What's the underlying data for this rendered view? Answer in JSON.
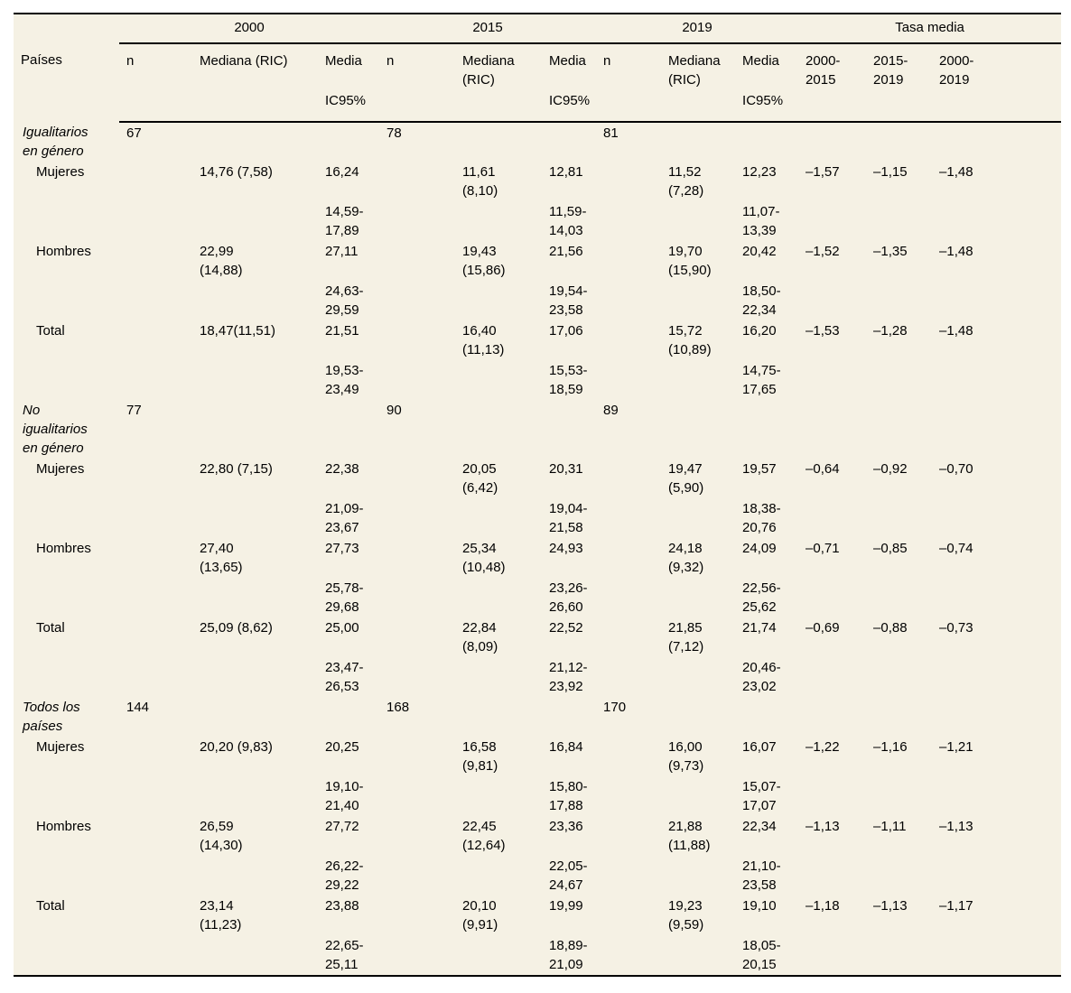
{
  "colors": {
    "page_bg": "#ffffff",
    "table_bg": "#f5f1e4",
    "rule": "#000000",
    "text": "#000000"
  },
  "header": {
    "row_label": "Países",
    "year_groups": [
      "2000",
      "2015",
      "2019"
    ],
    "rate_group": "Tasa media",
    "col_n": "n",
    "col_mediana_wide": "Mediana (RIC)",
    "col_mediana": "Mediana\n(RIC)",
    "col_media": "Media",
    "col_ic": "IC95%",
    "rate_cols": [
      "2000-\n2015",
      "2015-\n2019",
      "2000-\n2019"
    ]
  },
  "body": {
    "groups": [
      {
        "label": "Igualitarios\nen género",
        "n": [
          "67",
          "78",
          "81"
        ],
        "rows": [
          {
            "label": "Mujeres",
            "mediana": [
              "14,76 (7,58)",
              "11,61\n(8,10)",
              "11,52\n(7,28)"
            ],
            "media": [
              "16,24",
              "12,81",
              "12,23"
            ],
            "ic": [
              "14,59-\n17,89",
              "11,59-\n14,03",
              "11,07-\n13,39"
            ],
            "tasas": [
              "–1,57",
              "–1,15",
              "–1,48"
            ]
          },
          {
            "label": "Hombres",
            "mediana": [
              "22,99\n(14,88)",
              "19,43\n(15,86)",
              "19,70\n(15,90)"
            ],
            "media": [
              "27,11",
              "21,56",
              "20,42"
            ],
            "ic": [
              "24,63-\n29,59",
              "19,54-\n23,58",
              "18,50-\n22,34"
            ],
            "tasas": [
              "–1,52",
              "–1,35",
              "–1,48"
            ]
          },
          {
            "label": "Total",
            "mediana": [
              "18,47(11,51)",
              "16,40\n(11,13)",
              "15,72\n(10,89)"
            ],
            "media": [
              "21,51",
              "17,06",
              "16,20"
            ],
            "ic": [
              "19,53-\n23,49",
              "15,53-\n18,59",
              "14,75-\n17,65"
            ],
            "tasas": [
              "–1,53",
              "–1,28",
              "–1,48"
            ]
          }
        ]
      },
      {
        "label": "No\nigualitarios\nen género",
        "n": [
          "77",
          "90",
          "89"
        ],
        "rows": [
          {
            "label": "Mujeres",
            "mediana": [
              "22,80 (7,15)",
              "20,05\n(6,42)",
              "19,47\n(5,90)"
            ],
            "media": [
              "22,38",
              "20,31",
              "19,57"
            ],
            "ic": [
              "21,09-\n23,67",
              "19,04-\n21,58",
              "18,38-\n20,76"
            ],
            "tasas": [
              "–0,64",
              "–0,92",
              "–0,70"
            ]
          },
          {
            "label": "Hombres",
            "mediana": [
              "27,40\n(13,65)",
              "25,34\n(10,48)",
              "24,18\n(9,32)"
            ],
            "media": [
              "27,73",
              "24,93",
              "24,09"
            ],
            "ic": [
              "25,78-\n29,68",
              "23,26-\n26,60",
              "22,56-\n25,62"
            ],
            "tasas": [
              "–0,71",
              "–0,85",
              "–0,74"
            ]
          },
          {
            "label": "Total",
            "mediana": [
              "25,09 (8,62)",
              "22,84\n(8,09)",
              "21,85\n(7,12)"
            ],
            "media": [
              "25,00",
              "22,52",
              "21,74"
            ],
            "ic": [
              "23,47-\n26,53",
              "21,12-\n23,92",
              "20,46-\n23,02"
            ],
            "tasas": [
              "–0,69",
              "–0,88",
              "–0,73"
            ]
          }
        ]
      },
      {
        "label": "Todos los\npaíses",
        "n": [
          "144",
          "168",
          "170"
        ],
        "rows": [
          {
            "label": "Mujeres",
            "mediana": [
              "20,20 (9,83)",
              "16,58\n(9,81)",
              "16,00\n(9,73)"
            ],
            "media": [
              "20,25",
              "16,84",
              "16,07"
            ],
            "ic": [
              "19,10-\n21,40",
              "15,80-\n17,88",
              "15,07-\n17,07"
            ],
            "tasas": [
              "–1,22",
              "–1,16",
              "–1,21"
            ]
          },
          {
            "label": "Hombres",
            "mediana": [
              "26,59\n(14,30)",
              "22,45\n(12,64)",
              "21,88\n(11,88)"
            ],
            "media": [
              "27,72",
              "23,36",
              "22,34"
            ],
            "ic": [
              "26,22-\n29,22",
              "22,05-\n24,67",
              "21,10-\n23,58"
            ],
            "tasas": [
              "–1,13",
              "–1,11",
              "–1,13"
            ]
          },
          {
            "label": "Total",
            "mediana": [
              "23,14\n(11,23)",
              "20,10\n(9,91)",
              "19,23\n(9,59)"
            ],
            "media": [
              "23,88",
              "19,99",
              "19,10"
            ],
            "ic": [
              "22,65-\n25,11",
              "18,89-\n21,09",
              "18,05-\n20,15"
            ],
            "tasas": [
              "–1,18",
              "–1,13",
              "–1,17"
            ]
          }
        ]
      }
    ]
  }
}
